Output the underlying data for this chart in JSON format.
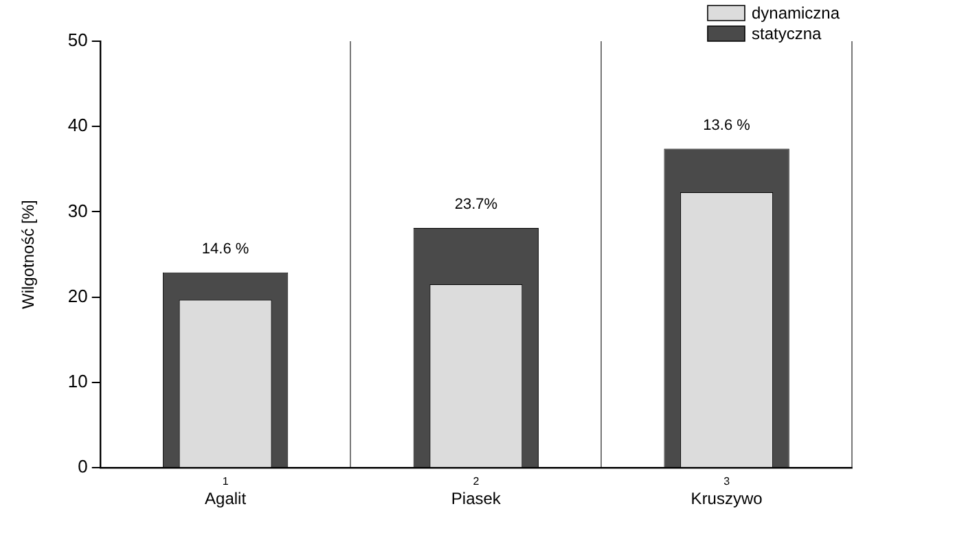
{
  "chart_data": {
    "type": "bar",
    "ylabel": "Wilgotność [%]",
    "categories": [
      "Agalit",
      "Piasek",
      "Kruszywo"
    ],
    "series": [
      {
        "name": "dynamiczna",
        "color": "#dcdcdc",
        "values": [
          19.7,
          21.5,
          32.3
        ]
      },
      {
        "name": "statyczna",
        "color": "#4a4a4a",
        "values": [
          22.9,
          28.1,
          37.4
        ]
      }
    ],
    "ylim": [
      0,
      50
    ],
    "yticks": [
      0,
      10,
      20,
      30,
      40,
      50
    ],
    "grid": "x",
    "legend": "top right",
    "annotations": [
      "14.6 %",
      "23.7%",
      "13.6 %",
      "1",
      "2",
      "3"
    ]
  }
}
